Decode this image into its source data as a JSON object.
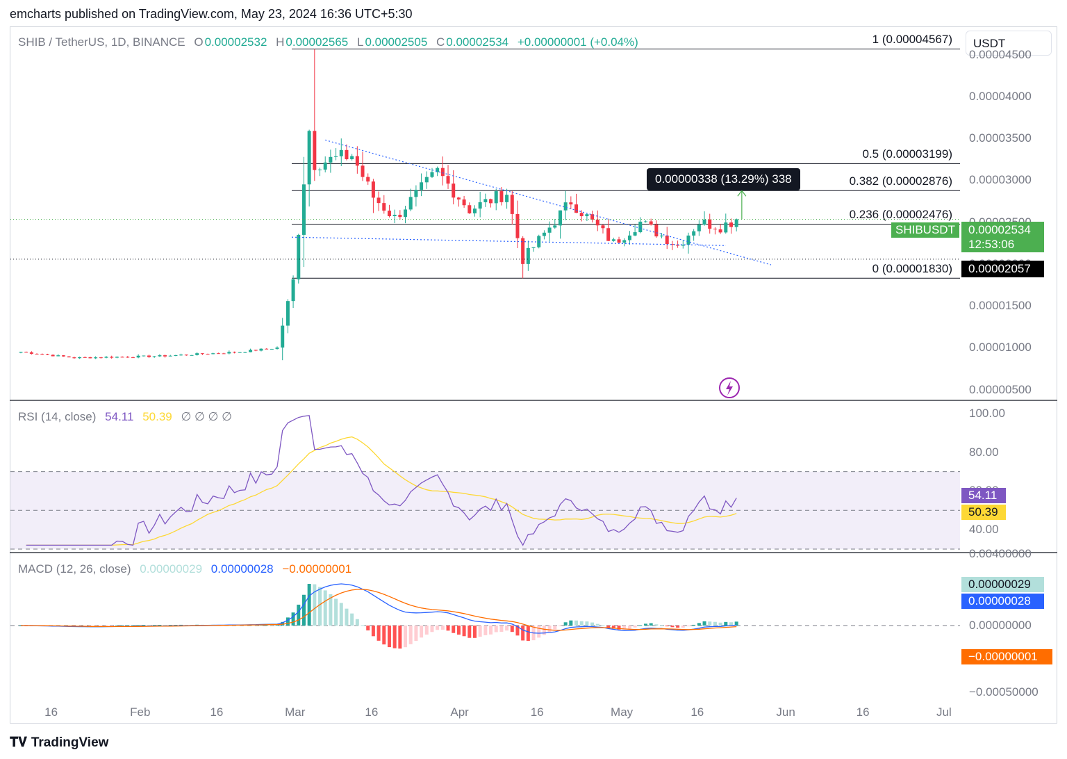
{
  "publisher_line": "emcharts published on TradingView.com, May 23, 2024 16:36 UTC+5:30",
  "symbol_legend": {
    "symbol": "SHIB / TetherUS, 1D, BINANCE",
    "open_label": "O",
    "open": "0.00002532",
    "high_label": "H",
    "high": "0.00002565",
    "low_label": "L",
    "low": "0.00002505",
    "close_label": "C",
    "close": "0.00002534",
    "change": "+0.00000001 (+0.04%)"
  },
  "unit": "USDT",
  "price_axis_ticks": [
    "0.00004500",
    "0.00004000",
    "0.00003500",
    "0.00003000",
    "0.00002500",
    "0.00002000",
    "0.00001500",
    "0.00001000",
    "0.00000500"
  ],
  "fib_levels": [
    {
      "label": "1 (0.00004567)",
      "value": 4.567e-05
    },
    {
      "label": "0.5 (0.00003199)",
      "value": 3.199e-05
    },
    {
      "label": "0.382 (0.00002876)",
      "value": 2.876e-05
    },
    {
      "label": "0.236 (0.00002476)",
      "value": 2.476e-05
    },
    {
      "label": "0 (0.00001830)",
      "value": 1.83e-05
    }
  ],
  "measure_tooltip": "0.00000338 (13.29%) 338",
  "last_price_badge": {
    "symbol": "SHIBUSDT",
    "price": "0.00002534",
    "countdown": "12:53:06",
    "color": "#4caf50"
  },
  "horizontal_line_badge": {
    "price": "0.00002057",
    "color": "#000000"
  },
  "rsi_legend": {
    "title": "RSI (14, close)",
    "rsi": "54.11",
    "ma": "50.39",
    "extras": "∅ ∅ ∅ ∅"
  },
  "rsi_axis_ticks": [
    "100.00",
    "80.00",
    "60.00",
    "40.00"
  ],
  "rsi_badges": {
    "rsi": "54.11",
    "ma": "50.39",
    "rsi_color": "#7e57c2",
    "ma_color": "#fdd835"
  },
  "macd_legend": {
    "title": "MACD (12, 26, close)",
    "hist": "0.00000029",
    "macd": "0.00000028",
    "signal": "−0.00000001"
  },
  "macd_axis_ticks": [
    "0.00400000",
    "0.00000000",
    "−0.00050000"
  ],
  "macd_badges": {
    "hist": "0.00000029",
    "macd": "0.00000028",
    "signal": "−0.00000001"
  },
  "time_axis_labels": [
    "16",
    "Feb",
    "16",
    "Mar",
    "16",
    "Apr",
    "16",
    "May",
    "16",
    "Jun",
    "16",
    "Jul"
  ],
  "footer_logo": "TradingView",
  "colors": {
    "up": "#22ab94",
    "down": "#f23645",
    "rsi": "#7e57c2",
    "rsi_ma": "#fdd835",
    "macd": "#2962ff",
    "signal": "#ff6d00"
  },
  "chart_data": {
    "type": "candlestick",
    "title": "SHIB / TetherUS, 1D, BINANCE",
    "x_range": [
      "2024-01-10",
      "2024-07-01"
    ],
    "ylim": [
      3.8e-06,
      4.82e-05
    ],
    "close_series_anchors": [
      {
        "date": "2024-01-10",
        "value": 9.5e-06
      },
      {
        "date": "2024-01-20",
        "value": 8.8e-06
      },
      {
        "date": "2024-02-05",
        "value": 9e-06
      },
      {
        "date": "2024-02-20",
        "value": 9.5e-06
      },
      {
        "date": "2024-02-27",
        "value": 1e-05
      },
      {
        "date": "2024-03-01",
        "value": 1.8e-05
      },
      {
        "date": "2024-03-04",
        "value": 3.6e-05
      },
      {
        "date": "2024-03-05",
        "value": 3.2e-05
      },
      {
        "date": "2024-03-12",
        "value": 3.3e-05
      },
      {
        "date": "2024-03-16",
        "value": 2.8e-05
      },
      {
        "date": "2024-03-20",
        "value": 2.55e-05
      },
      {
        "date": "2024-03-28",
        "value": 3.1e-05
      },
      {
        "date": "2024-04-03",
        "value": 2.65e-05
      },
      {
        "date": "2024-04-10",
        "value": 2.85e-05
      },
      {
        "date": "2024-04-13",
        "value": 2.05e-05
      },
      {
        "date": "2024-04-22",
        "value": 2.75e-05
      },
      {
        "date": "2024-04-30",
        "value": 2.25e-05
      },
      {
        "date": "2024-05-05",
        "value": 2.5e-05
      },
      {
        "date": "2024-05-12",
        "value": 2.22e-05
      },
      {
        "date": "2024-05-16",
        "value": 2.5e-05
      },
      {
        "date": "2024-05-20",
        "value": 2.45e-05
      },
      {
        "date": "2024-05-23",
        "value": 2.53e-05
      }
    ],
    "last_close": 2.534e-05,
    "horizontal_line": 2.057e-05,
    "rsi": {
      "ylim": [
        30,
        100
      ],
      "bands": [
        70,
        50,
        30
      ],
      "last": 54.11,
      "ma_last": 50.39
    },
    "macd": {
      "last_hist": 2.9e-07,
      "last_macd": 2.8e-07,
      "last_signal": -1e-08
    }
  }
}
